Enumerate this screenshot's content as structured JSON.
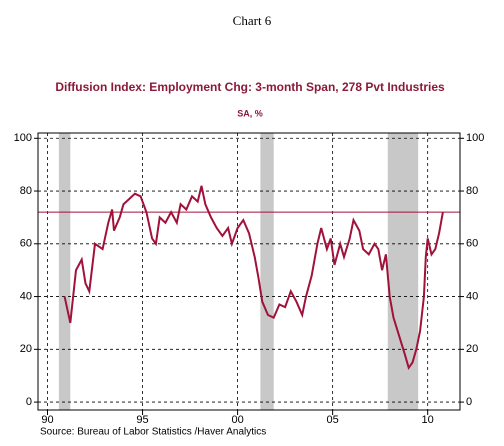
{
  "chart_data": {
    "type": "line",
    "header": "Chart 6",
    "title": "Diffusion Index: Employment Chg: 3-month Span, 278 Pvt Industries",
    "subtitle": "SA, %",
    "source": "Source:  Bureau of Labor Statistics /Haver Analytics",
    "x": [
      1990.9,
      1991.2,
      1991.5,
      1991.8,
      1992.0,
      1992.2,
      1992.5,
      1992.9,
      1993.2,
      1993.4,
      1993.5,
      1993.8,
      1994.0,
      1994.3,
      1994.6,
      1994.9,
      1995.2,
      1995.5,
      1995.7,
      1995.9,
      1996.2,
      1996.5,
      1996.8,
      1997.0,
      1997.3,
      1997.6,
      1997.9,
      1998.1,
      1998.3,
      1998.6,
      1998.9,
      1999.2,
      1999.5,
      1999.7,
      2000.0,
      2000.3,
      2000.6,
      2000.9,
      2001.1,
      2001.3,
      2001.6,
      2001.9,
      2002.2,
      2002.5,
      2002.8,
      2003.1,
      2003.4,
      2003.6,
      2003.9,
      2004.2,
      2004.4,
      2004.7,
      2004.9,
      2005.1,
      2005.4,
      2005.6,
      2005.9,
      2006.1,
      2006.4,
      2006.6,
      2006.9,
      2007.2,
      2007.4,
      2007.6,
      2007.8,
      2008.0,
      2008.2,
      2008.5,
      2008.8,
      2009.0,
      2009.2,
      2009.4,
      2009.6,
      2009.8,
      2009.9,
      2010.0,
      2010.2,
      2010.4,
      2010.6,
      2010.8
    ],
    "series": [
      {
        "name": "Diffusion Index",
        "color": "#a0123a",
        "values": [
          40,
          30,
          50,
          54,
          45,
          42,
          60,
          58,
          68,
          73,
          65,
          70,
          75,
          77,
          79,
          78,
          72,
          62,
          60,
          70,
          68,
          72,
          68,
          75,
          73,
          78,
          76,
          82,
          75,
          70,
          66,
          63,
          66,
          60,
          66,
          69,
          64,
          55,
          47,
          38,
          33,
          32,
          37,
          36,
          42,
          38,
          33,
          40,
          48,
          60,
          66,
          58,
          62,
          52,
          60,
          55,
          62,
          69,
          65,
          58,
          56,
          60,
          58,
          50,
          56,
          40,
          32,
          25,
          18,
          13,
          15,
          20,
          27,
          40,
          55,
          62,
          56,
          58,
          64,
          72
        ]
      }
    ],
    "reference_line": 72,
    "reference_color": "#a0123a",
    "shaded_periods": [
      [
        1990.6,
        1991.2
      ],
      [
        2001.2,
        2001.9
      ],
      [
        2007.9,
        2009.5
      ]
    ],
    "shade_color": "#c8c8c8",
    "xlim": [
      1989.5,
      2011.7
    ],
    "xticks": [
      {
        "value": 1990,
        "label": "90"
      },
      {
        "value": 1995,
        "label": "95"
      },
      {
        "value": 2000,
        "label": "00"
      },
      {
        "value": 2005,
        "label": "05"
      },
      {
        "value": 2010,
        "label": "10"
      }
    ],
    "ylim": [
      -3,
      102
    ],
    "yticks": [
      0,
      20,
      40,
      60,
      80,
      100
    ],
    "grid": true
  }
}
